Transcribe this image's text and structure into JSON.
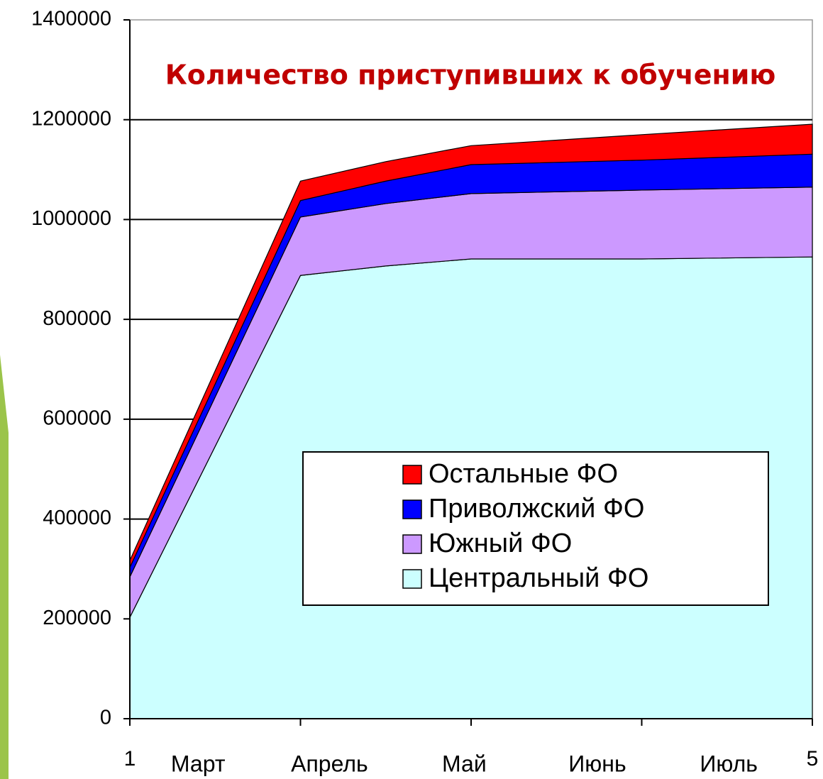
{
  "chart_data": {
    "type": "stacked_area",
    "title": "Количество приступивших к обучению",
    "x": [
      1,
      2,
      2.5,
      3,
      4,
      5
    ],
    "series": [
      {
        "name": "Центральный ФО",
        "color": "#ccffff",
        "values": [
          203000,
          888000,
          907000,
          921000,
          921000,
          925000
        ]
      },
      {
        "name": "Южный ФО",
        "color": "#cc99ff",
        "values": [
          81000,
          117000,
          125000,
          131000,
          138000,
          140000
        ]
      },
      {
        "name": "Приволжский ФО",
        "color": "#0000ff",
        "values": [
          19000,
          33000,
          45000,
          58000,
          60000,
          66000
        ]
      },
      {
        "name": "Остальные ФО",
        "color": "#ff0000",
        "values": [
          14000,
          39000,
          39000,
          38000,
          51000,
          60000
        ]
      }
    ],
    "xlim": [
      1,
      5
    ],
    "xticks": [
      1,
      2,
      3,
      4,
      5
    ],
    "xtick_labels": [
      {
        "value": 1,
        "label": "1"
      },
      {
        "value": 5,
        "label": "5"
      }
    ],
    "month_labels": [
      {
        "value": 1.4,
        "label": "Март"
      },
      {
        "value": 2.17,
        "label": "Апрель"
      },
      {
        "value": 2.96,
        "label": "Май"
      },
      {
        "value": 3.74,
        "label": "Июнь"
      },
      {
        "value": 4.51,
        "label": "Июль"
      }
    ],
    "ylim": [
      0,
      1400000
    ],
    "yticks": [
      0,
      200000,
      400000,
      600000,
      800000,
      1000000,
      1200000,
      1400000
    ],
    "grid": true,
    "legend": "bottom-right"
  }
}
